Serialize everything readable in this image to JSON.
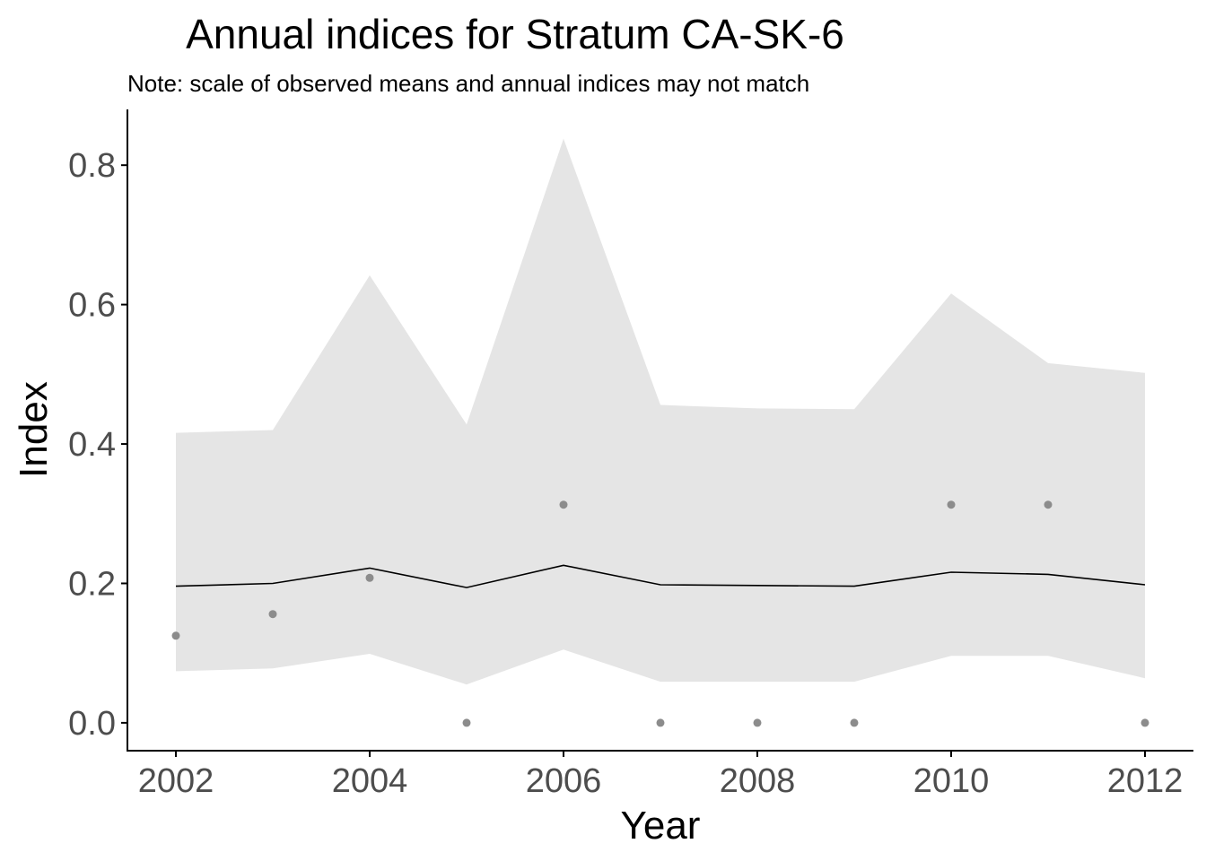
{
  "chart_data": {
    "type": "line",
    "title": "Annual indices for Stratum CA-SK-6",
    "subtitle": "Note: scale of observed means and annual indices may not match",
    "xlabel": "Year",
    "ylabel": "Index",
    "xlim": [
      2001.5,
      2012.5
    ],
    "ylim": [
      -0.04,
      0.88
    ],
    "x_ticks": [
      2002,
      2004,
      2006,
      2008,
      2010,
      2012
    ],
    "x_tick_labels": [
      "2002",
      "2004",
      "2006",
      "2008",
      "2010",
      "2012"
    ],
    "y_ticks": [
      0.0,
      0.2,
      0.4,
      0.6,
      0.8
    ],
    "y_tick_labels": [
      "0.0",
      "0.2",
      "0.4",
      "0.6",
      "0.8"
    ],
    "x": [
      2002,
      2003,
      2004,
      2005,
      2006,
      2007,
      2008,
      2009,
      2010,
      2011,
      2012
    ],
    "index": [
      0.196,
      0.2,
      0.222,
      0.194,
      0.226,
      0.198,
      0.197,
      0.196,
      0.216,
      0.213,
      0.198
    ],
    "lower": [
      0.074,
      0.078,
      0.099,
      0.055,
      0.105,
      0.059,
      0.059,
      0.059,
      0.096,
      0.096,
      0.064
    ],
    "upper": [
      0.416,
      0.42,
      0.642,
      0.428,
      0.838,
      0.456,
      0.451,
      0.45,
      0.616,
      0.516,
      0.502
    ],
    "observed_means": [
      0.125,
      0.156,
      0.208,
      0.0,
      0.313,
      0.0,
      0.0,
      0.0,
      0.313,
      0.313,
      0.0
    ],
    "grid": false,
    "legend": "none",
    "colors": {
      "ribbon": "#e5e5e5",
      "line": "#000000",
      "points": "#8c8c8c",
      "axis": "#000000",
      "tick_label": "#4d4d4d"
    }
  }
}
